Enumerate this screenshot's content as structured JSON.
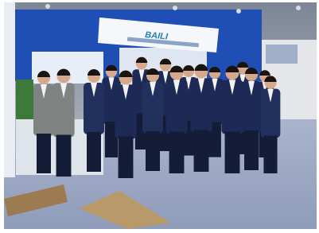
{
  "sign": {
    "brand": "BAILI"
  }
}
